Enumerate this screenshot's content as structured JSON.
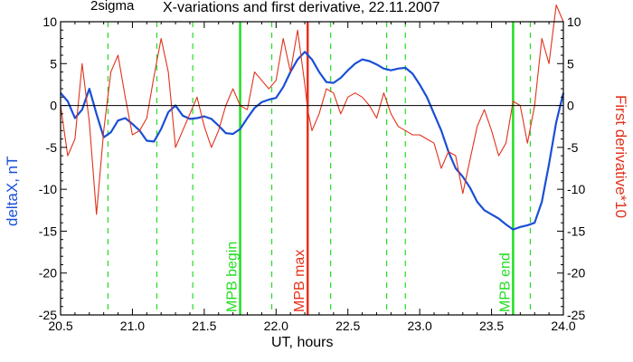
{
  "corner_label": "2sigma",
  "chart_data": {
    "type": "line",
    "title": "X-variations and first derivative, 22.11.2007",
    "xlabel": "UT, hours",
    "ylabel": "deltaX, nT",
    "y2label": "First derivative*10",
    "xlim": [
      20.5,
      24.0
    ],
    "ylim": [
      -25,
      10
    ],
    "y2lim": [
      -25,
      10
    ],
    "x_ticks": [
      20.5,
      21.0,
      21.5,
      22.0,
      22.5,
      23.0,
      23.5,
      24.0
    ],
    "x_tick_labels": [
      "20.5",
      "21.0",
      "21.5",
      "22.0",
      "22.5",
      "23.0",
      "23.5",
      "24.0"
    ],
    "y_ticks": [
      10,
      5,
      0,
      -5,
      -10,
      -15,
      -20,
      -25
    ],
    "y_tick_labels": [
      "10",
      "5",
      "0",
      "-5",
      "-10",
      "-15",
      "-20",
      "-25"
    ],
    "grid": false,
    "zero_line": 0,
    "series": [
      {
        "name": "deltaX, nT",
        "axis": "left",
        "color": "#1a4fd6",
        "x": [
          20.5,
          20.55,
          20.6,
          20.65,
          20.7,
          20.75,
          20.8,
          20.85,
          20.9,
          20.95,
          21.0,
          21.05,
          21.1,
          21.15,
          21.2,
          21.25,
          21.3,
          21.35,
          21.4,
          21.45,
          21.5,
          21.55,
          21.6,
          21.65,
          21.7,
          21.75,
          21.8,
          21.85,
          21.9,
          21.95,
          22.0,
          22.05,
          22.1,
          22.15,
          22.2,
          22.25,
          22.3,
          22.35,
          22.4,
          22.45,
          22.5,
          22.55,
          22.6,
          22.65,
          22.7,
          22.75,
          22.8,
          22.85,
          22.9,
          22.95,
          23.0,
          23.05,
          23.1,
          23.15,
          23.2,
          23.25,
          23.3,
          23.35,
          23.4,
          23.45,
          23.5,
          23.55,
          23.6,
          23.65,
          23.7,
          23.75,
          23.8,
          23.85,
          23.9,
          23.95,
          24.0
        ],
        "values": [
          1.5,
          0.5,
          -1.5,
          -0.5,
          2.0,
          -1.0,
          -3.8,
          -3.2,
          -1.8,
          -1.5,
          -2.2,
          -3.0,
          -4.2,
          -4.3,
          -2.8,
          -0.8,
          0.0,
          -1.2,
          -1.6,
          -1.5,
          -1.3,
          -1.6,
          -2.4,
          -3.3,
          -3.4,
          -2.8,
          -1.5,
          -0.3,
          0.4,
          0.7,
          0.9,
          2.2,
          4.0,
          5.5,
          6.4,
          5.5,
          4.0,
          2.8,
          2.7,
          3.3,
          4.2,
          5.0,
          5.5,
          5.3,
          4.9,
          4.4,
          4.2,
          4.4,
          4.5,
          3.8,
          2.5,
          1.0,
          -1.0,
          -3.0,
          -5.5,
          -7.5,
          -8.5,
          -9.8,
          -11.5,
          -12.5,
          -13.0,
          -13.5,
          -14.2,
          -14.8,
          -14.5,
          -14.3,
          -14.0,
          -11.5,
          -7.0,
          -2.0,
          1.5
        ]
      },
      {
        "name": "First derivative*10",
        "axis": "right",
        "color": "#e0321c",
        "x": [
          20.5,
          20.55,
          20.6,
          20.65,
          20.7,
          20.75,
          20.8,
          20.85,
          20.9,
          20.95,
          21.0,
          21.05,
          21.1,
          21.15,
          21.2,
          21.25,
          21.3,
          21.35,
          21.4,
          21.45,
          21.5,
          21.55,
          21.6,
          21.65,
          21.7,
          21.75,
          21.8,
          21.85,
          21.9,
          21.95,
          22.0,
          22.05,
          22.1,
          22.15,
          22.2,
          22.22,
          22.25,
          22.3,
          22.35,
          22.4,
          22.45,
          22.5,
          22.55,
          22.6,
          22.65,
          22.7,
          22.75,
          22.8,
          22.85,
          22.9,
          22.95,
          23.0,
          23.05,
          23.1,
          23.15,
          23.2,
          23.25,
          23.3,
          23.35,
          23.4,
          23.45,
          23.5,
          23.55,
          23.6,
          23.65,
          23.7,
          23.75,
          23.8,
          23.85,
          23.9,
          23.95,
          24.0
        ],
        "values": [
          0.0,
          -6.0,
          -4.0,
          5.0,
          -2.0,
          -13.0,
          -3.0,
          4.0,
          6.0,
          1.0,
          -3.5,
          -3.0,
          -1.5,
          3.5,
          8.0,
          4.0,
          -5.0,
          -3.0,
          -1.0,
          1.0,
          -2.5,
          -5.0,
          -3.0,
          0.0,
          2.0,
          0.0,
          -0.5,
          4.0,
          3.0,
          2.0,
          3.0,
          8.0,
          4.0,
          9.0,
          2.5,
          -0.5,
          -3.0,
          -1.0,
          2.0,
          1.5,
          -1.0,
          1.0,
          1.5,
          1.0,
          0.0,
          -1.5,
          1.5,
          -1.0,
          -2.5,
          -3.0,
          -3.5,
          -3.5,
          -4.0,
          -4.5,
          -7.5,
          -5.5,
          -6.0,
          -10.5,
          -6.5,
          -2.5,
          -0.5,
          -3.0,
          -6.0,
          -4.5,
          0.5,
          0.0,
          -4.5,
          0.0,
          8.0,
          5.0,
          12.0,
          10.0
        ]
      }
    ],
    "vertical_markers": [
      {
        "x": 21.75,
        "label": "MPB begin",
        "color": "#22dd22",
        "style": "solid"
      },
      {
        "x": 22.22,
        "label": "MPB max",
        "color": "#e8321c",
        "style": "solid"
      },
      {
        "x": 23.65,
        "label": "MPB end",
        "color": "#22dd22",
        "style": "solid"
      }
    ],
    "dashed_markers": [
      20.83,
      21.17,
      21.42,
      21.97,
      22.38,
      22.77,
      22.9,
      23.77
    ],
    "dashed_color": "#22dd22"
  }
}
